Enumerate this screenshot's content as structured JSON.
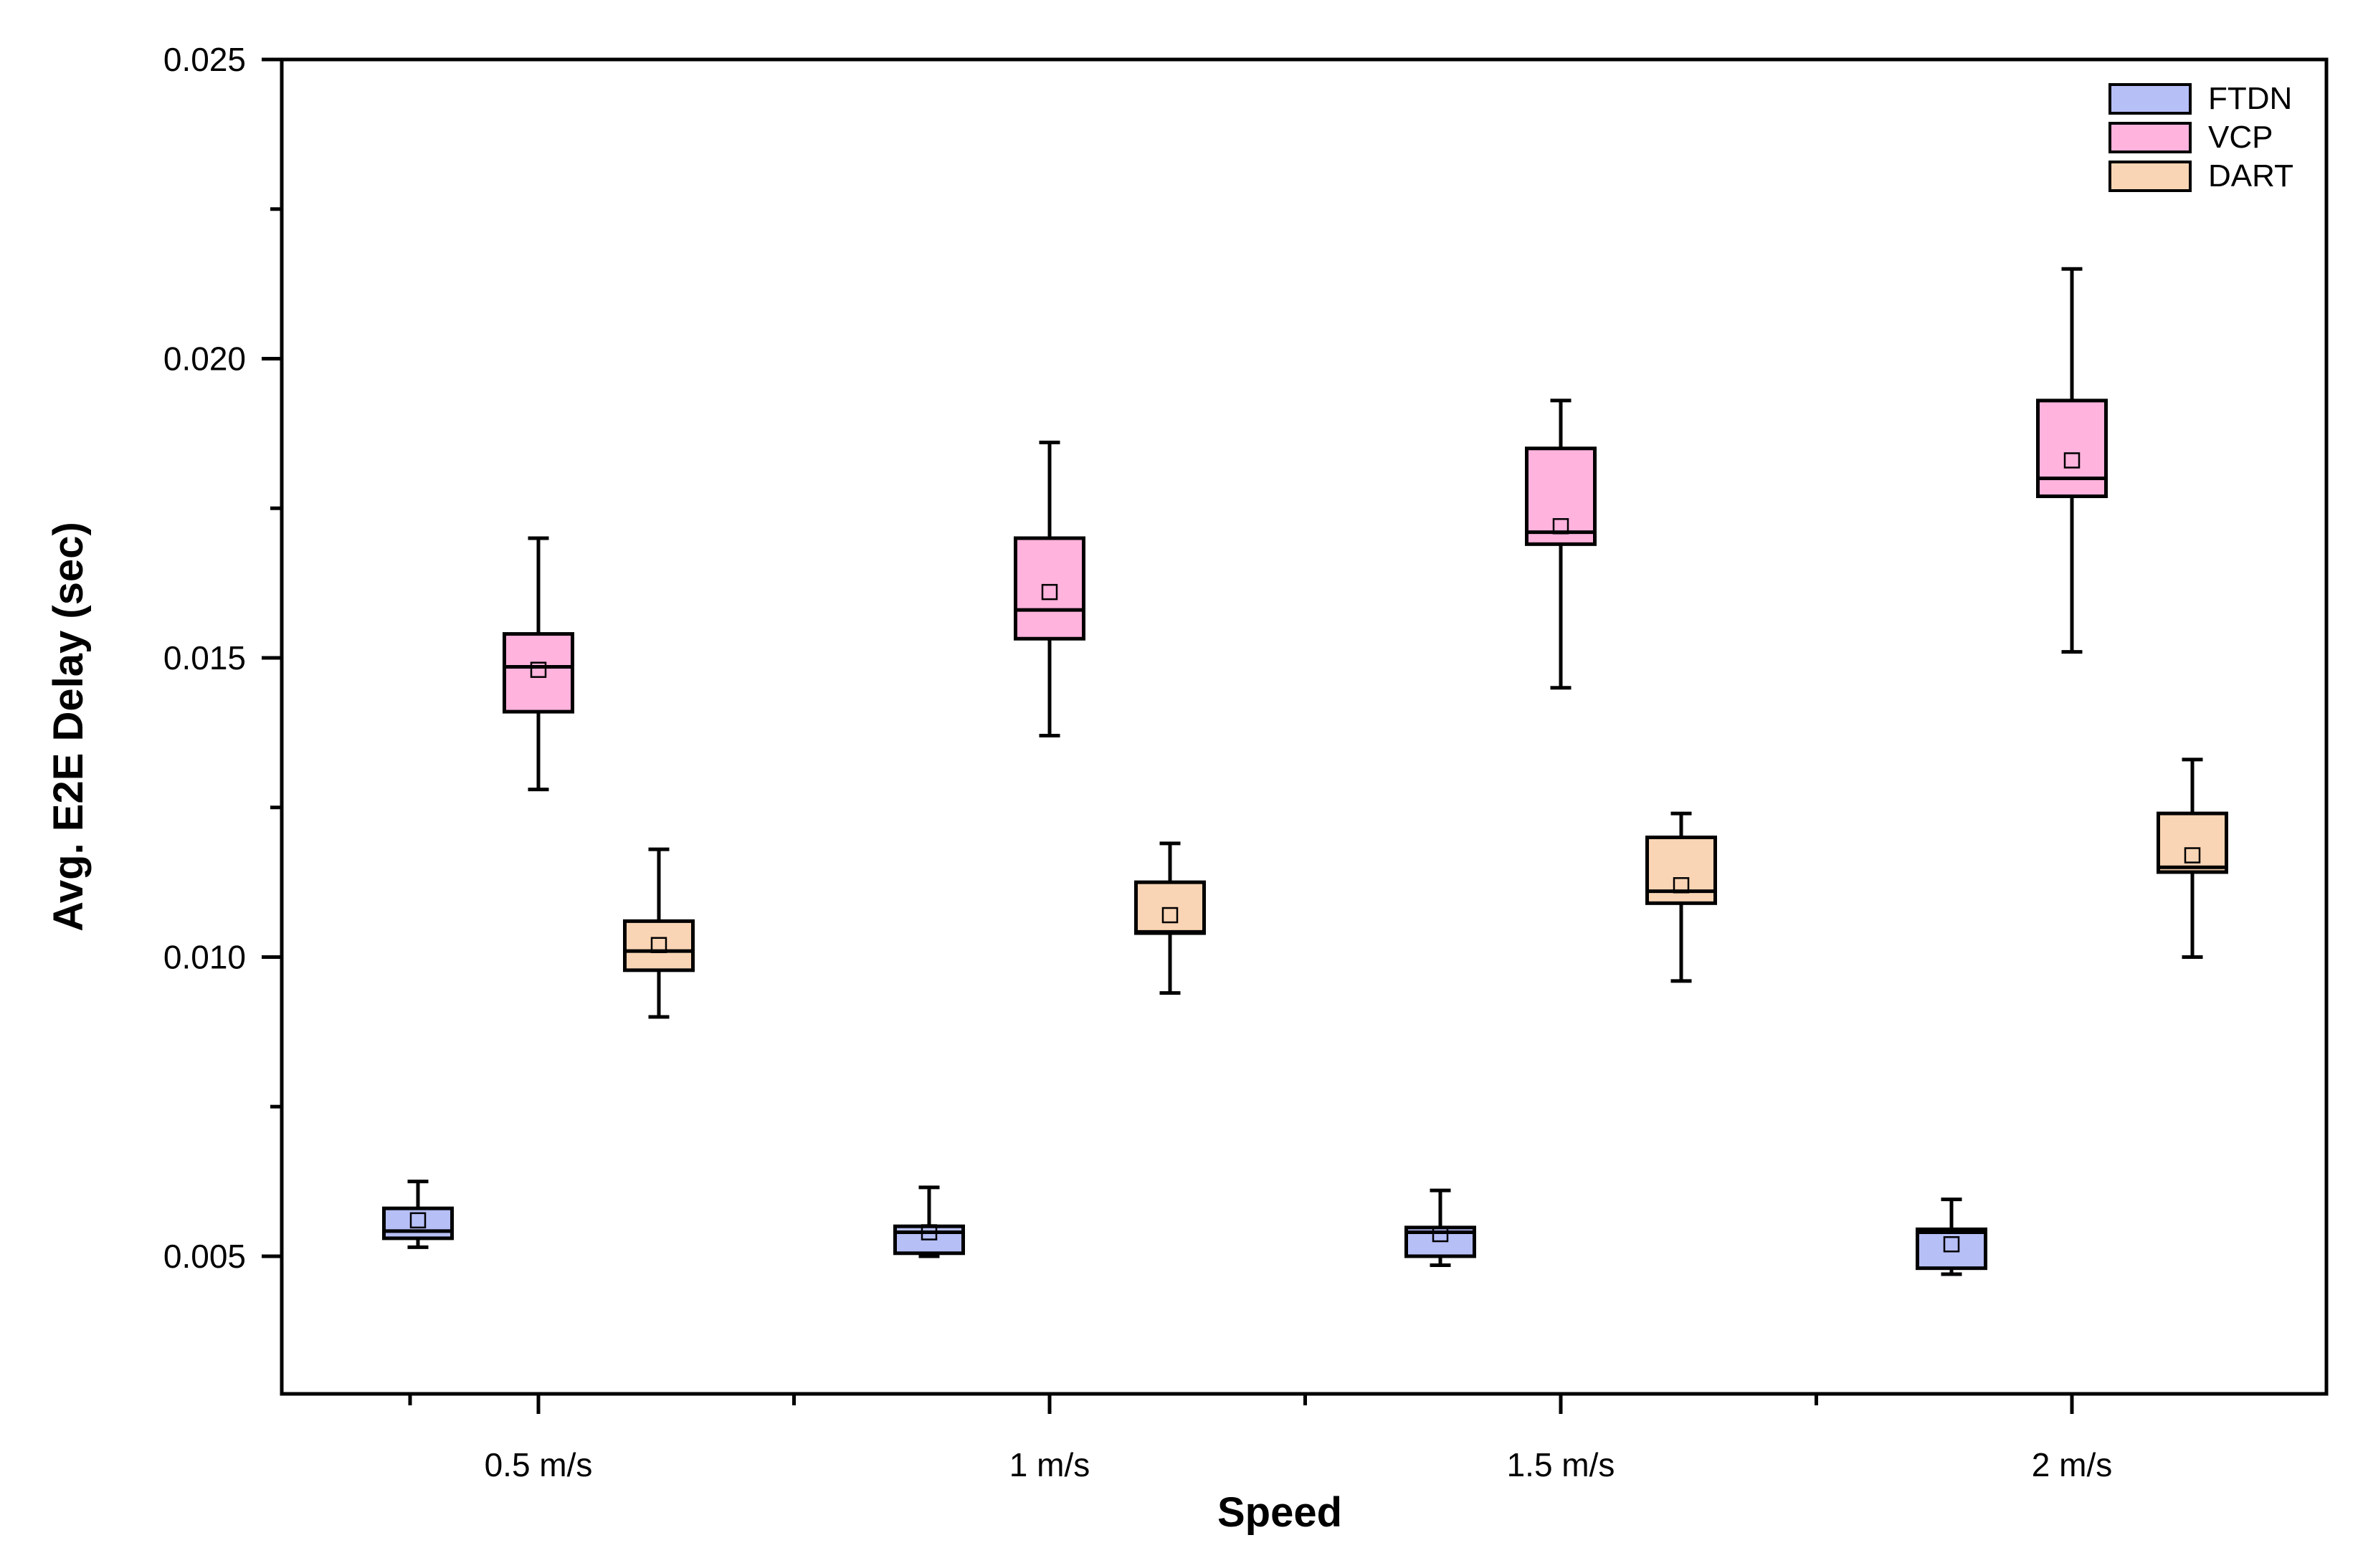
{
  "chart_data": {
    "type": "box",
    "title": "",
    "xlabel": "Speed",
    "ylabel": "Avg. E2E Delay (sec)",
    "categories": [
      "0.5 m/s",
      "1 m/s",
      "1.5 m/s",
      "2 m/s"
    ],
    "ylim": [
      0.0027,
      0.025
    ],
    "yticks": [
      0.005,
      0.01,
      0.015,
      0.02,
      0.025
    ],
    "ytick_labels": [
      "0.005",
      "0.010",
      "0.015",
      "0.020",
      "0.025"
    ],
    "grid": false,
    "legend_position": "top-right",
    "series": [
      {
        "name": "FTDN",
        "color": "#b7bff7",
        "boxes": [
          {
            "min": 0.00515,
            "q1": 0.0053,
            "median": 0.00542,
            "q3": 0.0058,
            "max": 0.00625,
            "mean": 0.0056
          },
          {
            "min": 0.005,
            "q1": 0.00505,
            "median": 0.0054,
            "q3": 0.0055,
            "max": 0.00615,
            "mean": 0.0054
          },
          {
            "min": 0.00485,
            "q1": 0.005,
            "median": 0.0054,
            "q3": 0.00548,
            "max": 0.0061,
            "mean": 0.00537
          },
          {
            "min": 0.0047,
            "q1": 0.0048,
            "median": 0.0054,
            "q3": 0.00545,
            "max": 0.00595,
            "mean": 0.0052
          }
        ]
      },
      {
        "name": "VCP",
        "color": "#ffb3dd",
        "boxes": [
          {
            "min": 0.0128,
            "q1": 0.0141,
            "median": 0.01485,
            "q3": 0.0154,
            "max": 0.017,
            "mean": 0.0148
          },
          {
            "min": 0.0137,
            "q1": 0.01532,
            "median": 0.0158,
            "q3": 0.017,
            "max": 0.0186,
            "mean": 0.0161
          },
          {
            "min": 0.0145,
            "q1": 0.0169,
            "median": 0.0171,
            "q3": 0.0185,
            "max": 0.0193,
            "mean": 0.0172
          },
          {
            "min": 0.0151,
            "q1": 0.0177,
            "median": 0.018,
            "q3": 0.0193,
            "max": 0.0215,
            "mean": 0.0183
          }
        ]
      },
      {
        "name": "DART",
        "color": "#fad5b5",
        "boxes": [
          {
            "min": 0.009,
            "q1": 0.00978,
            "median": 0.0101,
            "q3": 0.0106,
            "max": 0.0118,
            "mean": 0.0102
          },
          {
            "min": 0.0094,
            "q1": 0.0104,
            "median": 0.01042,
            "q3": 0.01125,
            "max": 0.0119,
            "mean": 0.0107
          },
          {
            "min": 0.0096,
            "q1": 0.0109,
            "median": 0.0111,
            "q3": 0.012,
            "max": 0.0124,
            "mean": 0.0112
          },
          {
            "min": 0.01,
            "q1": 0.01142,
            "median": 0.0115,
            "q3": 0.0124,
            "max": 0.0133,
            "mean": 0.0117
          }
        ]
      }
    ]
  }
}
